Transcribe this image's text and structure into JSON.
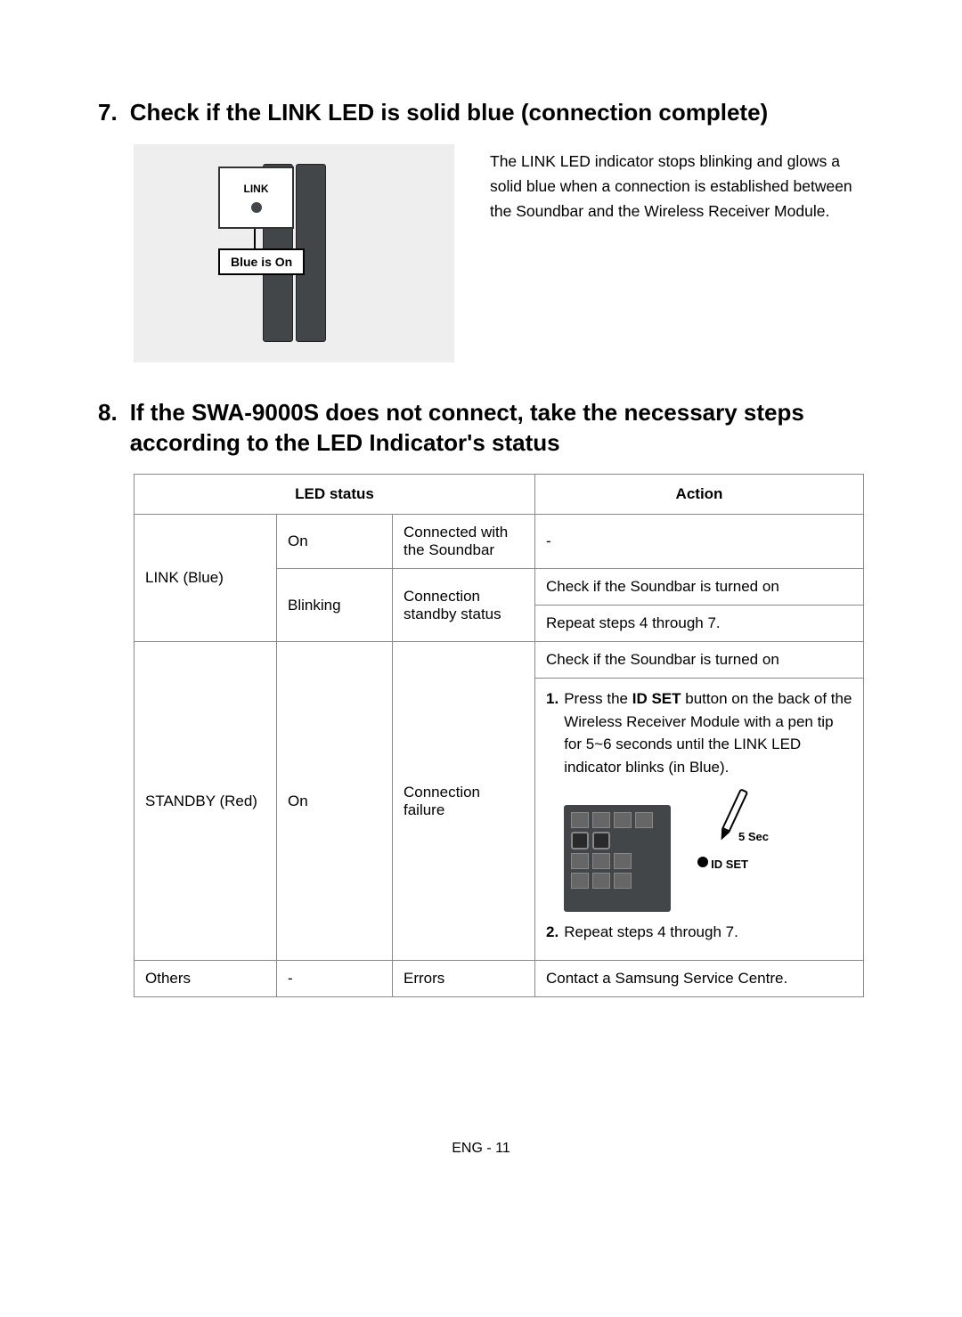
{
  "section7": {
    "number": "7.",
    "title": "Check if the LINK LED is solid blue (connection complete)",
    "link_label": "LINK",
    "callout": "Blue is On",
    "description": "The LINK LED indicator stops blinking and glows a solid blue when a connection is established between the Soundbar and the Wireless Receiver Module."
  },
  "section8": {
    "number": "8.",
    "title": "If the SWA-9000S does not connect, take the necessary steps according to the LED Indicator's status"
  },
  "table": {
    "headers": {
      "led_status": "LED status",
      "action": "Action"
    },
    "rows": {
      "link_blue": {
        "led": "LINK (Blue)",
        "on": {
          "state": "On",
          "status": "Connected with the Soundbar",
          "action": "-"
        },
        "blinking": {
          "state": "Blinking",
          "status": "Connection standby status",
          "action1": "Check if the Soundbar is turned on",
          "action2": "Repeat steps 4 through 7."
        }
      },
      "standby_red": {
        "led": "STANDBY (Red)",
        "state": "On",
        "status": "Connection failure",
        "action_check": "Check if the Soundbar is turned on",
        "step1_num": "1.",
        "step1_text_pre": "Press the ",
        "step1_bold": "ID SET",
        "step1_text_post": " button on the back of the Wireless Receiver Module with a pen tip for 5~6 seconds until the LINK LED indicator blinks (in Blue).",
        "duration": "5 Sec",
        "idset_label": "ID SET",
        "step2_num": "2.",
        "step2_text": "Repeat steps 4 through 7."
      },
      "others": {
        "led": "Others",
        "state": "-",
        "status": "Errors",
        "action": "Contact a Samsung Service Centre."
      }
    }
  },
  "footer": "ENG - 11",
  "colors": {
    "diagram_bg": "#eeeeee",
    "speaker_fill": "#434648",
    "border": "#888888"
  }
}
